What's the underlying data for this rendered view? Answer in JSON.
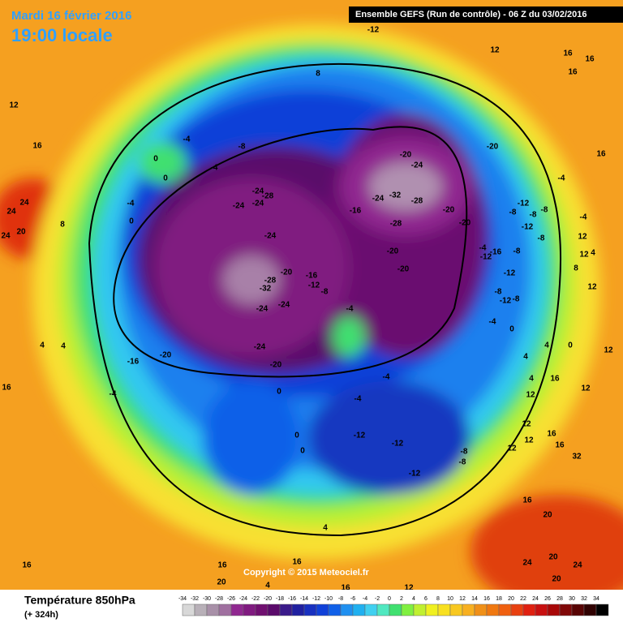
{
  "header": {
    "date": "Mardi 16 février 2016",
    "time": "19:00 locale",
    "run": "Ensemble GEFS  (Run de contrôle)  -  06 Z du 03/02/2016"
  },
  "copyright": "Copyright © 2015 Meteociel.fr",
  "legend": {
    "title": "Température 850hPa",
    "subtitle": "(+ 324h)",
    "scale": [
      "-34",
      "-32",
      "-30",
      "-28",
      "-26",
      "-24",
      "-22",
      "-20",
      "-18",
      "-16",
      "-14",
      "-12",
      "-10",
      "-8",
      "-6",
      "-4",
      "-2",
      "0",
      "2",
      "4",
      "6",
      "8",
      "10",
      "12",
      "14",
      "16",
      "18",
      "20",
      "22",
      "24",
      "26",
      "28",
      "30",
      "32",
      "34"
    ],
    "colors": [
      "#d8d8d8",
      "#b8b0b8",
      "#a890a8",
      "#a070a0",
      "#902890",
      "#801a80",
      "#700f70",
      "#5a0a6a",
      "#3a1a8a",
      "#2020a0",
      "#1830c0",
      "#1040d8",
      "#1060e8",
      "#2090f0",
      "#20b0f0",
      "#40d0f0",
      "#50e8c0",
      "#40e070",
      "#80f040",
      "#c0f030",
      "#f0f020",
      "#f8e020",
      "#f8c820",
      "#f8b020",
      "#f09018",
      "#f07810",
      "#f06010",
      "#e84010",
      "#e02010",
      "#c81010",
      "#a80808",
      "#800808",
      "#580404",
      "#300202",
      "#000000"
    ]
  },
  "contour_labels": [
    "-12",
    "12",
    "16",
    "16",
    "16",
    "8",
    "12",
    "16",
    "-4",
    "-8",
    "0",
    "-4",
    "0",
    "-20",
    "-24",
    "-20",
    "16",
    "-4",
    "-24",
    "-28",
    "-24",
    "-24",
    "-24",
    "-32",
    "-28",
    "-16",
    "-20",
    "-20",
    "-28",
    "-12",
    "-8",
    "-8",
    "-8",
    "-4",
    "24",
    "24",
    "-4",
    "0",
    "8",
    "-24",
    "-12",
    "-8",
    "12",
    "24",
    "20",
    "-20",
    "-20",
    "-4",
    "-12",
    "-16",
    "-8",
    "-12",
    "12",
    "4",
    "8",
    "-20",
    "-28",
    "-32",
    "-16",
    "-12",
    "-8",
    "-8",
    "-12",
    "-8",
    "12",
    "-24",
    "-24",
    "-4",
    "-4",
    "0",
    "4",
    "0",
    "-24",
    "-20",
    "-16",
    "-20",
    "4",
    "4",
    "12",
    "4",
    "-4",
    "-4",
    "0",
    "16",
    "4",
    "-4",
    "12",
    "12",
    "16",
    "-12",
    "-12",
    "-8",
    "-8",
    "0",
    "0",
    "12",
    "12",
    "16",
    "12",
    "16",
    "-12",
    "32",
    "16",
    "20",
    "4",
    "16",
    "16",
    "16",
    "24",
    "20",
    "24",
    "20",
    "20",
    "16",
    "12",
    "4"
  ]
}
